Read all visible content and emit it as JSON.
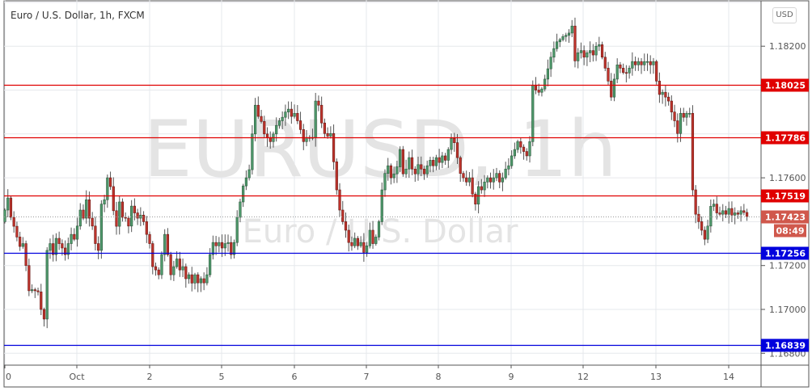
{
  "header": {
    "title": "Euro / U.S. Dollar, 1h, FXCM",
    "currency_button": "USD"
  },
  "watermark": {
    "symbol": "EURUSD, 1h",
    "description": "Euro / U.S. Dollar"
  },
  "colors": {
    "up": "#4f9a6c",
    "down": "#c0342c",
    "resistance": "#e00000",
    "support": "#0000dd",
    "current": "#d0584c"
  },
  "chart_data": {
    "type": "candlestick",
    "title": "Euro / U.S. Dollar, 1h, FXCM",
    "interval": "1h",
    "ylim": [
      1.1675,
      1.1841
    ],
    "y_ticks": [
      "1.16800",
      "1.17000",
      "1.17200",
      "1.17600",
      "1.18200"
    ],
    "x_ticks": [
      "0",
      "Oct",
      "2",
      "5",
      "6",
      "7",
      "8",
      "9",
      "12",
      "13",
      "14"
    ],
    "grid": true,
    "first_open": 1.174,
    "closes": [
      1.17453,
      1.17508,
      1.1742,
      1.17379,
      1.1733,
      1.17287,
      1.173,
      1.172,
      1.17085,
      1.1709,
      1.17085,
      1.1708,
      1.17,
      1.16956,
      1.17269,
      1.173,
      1.1725,
      1.17324,
      1.173,
      1.1728,
      1.1725,
      1.173,
      1.17342,
      1.1732,
      1.1738,
      1.17453,
      1.17416,
      1.175,
      1.17416,
      1.1738,
      1.173,
      1.17269,
      1.1748,
      1.175,
      1.176,
      1.1756,
      1.1745,
      1.17379,
      1.1749,
      1.1742,
      1.17416,
      1.1738,
      1.17471,
      1.1744,
      1.17416,
      1.1743,
      1.174,
      1.17342,
      1.173,
      1.17195,
      1.1718,
      1.17158,
      1.1725,
      1.17342,
      1.1725,
      1.17158,
      1.17195,
      1.1723,
      1.1718,
      1.17195,
      1.1714,
      1.17158,
      1.1712,
      1.17158,
      1.17121,
      1.1714,
      1.17121,
      1.17158,
      1.1725,
      1.17305,
      1.1729,
      1.17305,
      1.1728,
      1.173,
      1.17305,
      1.1725,
      1.17305,
      1.1742,
      1.1749,
      1.17563,
      1.176,
      1.17637,
      1.178,
      1.17931,
      1.1788,
      1.17857,
      1.178,
      1.17784,
      1.17765,
      1.178,
      1.17839,
      1.1786,
      1.17876,
      1.179,
      1.17913,
      1.1788,
      1.17894,
      1.1786,
      1.1782,
      1.17765,
      1.17784,
      1.1778,
      1.17784,
      1.1795,
      1.17931,
      1.1785,
      1.17802,
      1.1779,
      1.17802,
      1.17673,
      1.17545,
      1.17453,
      1.174,
      1.17361,
      1.17305,
      1.1729,
      1.17324,
      1.1729,
      1.17305,
      1.1726,
      1.1729,
      1.17361,
      1.173,
      1.1733,
      1.174,
      1.17545,
      1.1762,
      1.17655,
      1.176,
      1.17618,
      1.1765,
      1.17729,
      1.17618,
      1.1764,
      1.17692,
      1.1764,
      1.17618,
      1.1766,
      1.1764,
      1.17618,
      1.17655,
      1.1768,
      1.17655,
      1.17692,
      1.1767,
      1.177,
      1.1768,
      1.17729,
      1.1778,
      1.1776,
      1.17692,
      1.1762,
      1.176,
      1.17581,
      1.176,
      1.17526,
      1.1748,
      1.1756,
      1.17545,
      1.17581,
      1.176,
      1.17581,
      1.176,
      1.1762,
      1.17581,
      1.176,
      1.1764,
      1.17655,
      1.177,
      1.17729,
      1.17765,
      1.1774,
      1.1772,
      1.177,
      1.17765,
      1.18023,
      1.18,
      1.1799,
      1.18005,
      1.1805,
      1.18097,
      1.1815,
      1.18189,
      1.1822,
      1.1823,
      1.18244,
      1.1825,
      1.1826,
      1.18292,
      1.18133,
      1.1817,
      1.1818,
      1.1815,
      1.1817,
      1.1818,
      1.1816,
      1.182,
      1.18207,
      1.1815,
      1.181,
      1.18041,
      1.17968,
      1.1805,
      1.18115,
      1.181,
      1.1808,
      1.18078,
      1.181,
      1.1813,
      1.18115,
      1.1813,
      1.18115,
      1.1813,
      1.1813,
      1.18115,
      1.1813,
      1.18041,
      1.1798,
      1.1799,
      1.17968,
      1.1795,
      1.179,
      1.1786,
      1.17802,
      1.17894,
      1.17876,
      1.17894,
      1.17894,
      1.17545,
      1.17434,
      1.174,
      1.17361,
      1.1732,
      1.1738,
      1.1747,
      1.1748,
      1.1744,
      1.17434,
      1.1745,
      1.17434,
      1.1746,
      1.1743,
      1.1744,
      1.17434,
      1.1745,
      1.17442,
      1.17423
    ],
    "horizontal_levels": [
      {
        "price": 1.18025,
        "label": "1.18025",
        "kind": "resistance"
      },
      {
        "price": 1.17786,
        "label": "1.17786",
        "kind": "resistance"
      },
      {
        "price": 1.17519,
        "label": "1.17519",
        "kind": "resistance"
      },
      {
        "price": 1.17256,
        "label": "1.17256",
        "kind": "support"
      },
      {
        "price": 1.16839,
        "label": "1.16839",
        "kind": "support"
      }
    ],
    "current_price": {
      "price": 1.17423,
      "label": "1.17423",
      "countdown": "08:49"
    }
  }
}
